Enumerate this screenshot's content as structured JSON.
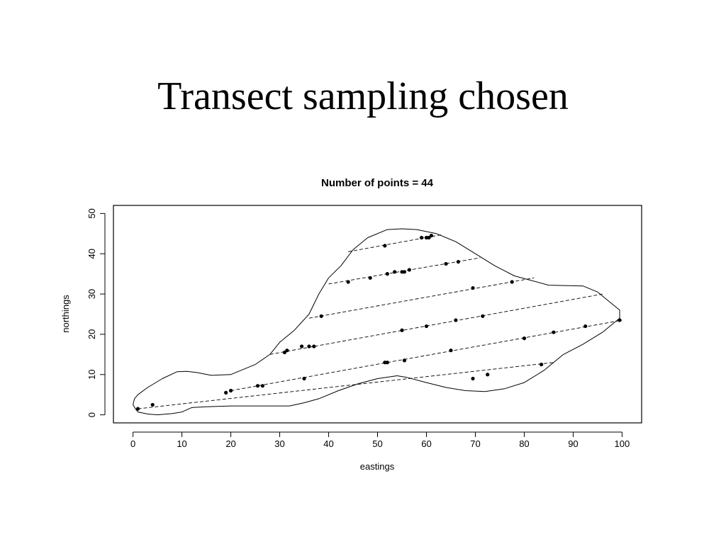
{
  "slide": {
    "title": "Transect sampling chosen"
  },
  "chart_data": {
    "type": "scatter",
    "title": "Number of points =  44",
    "xlabel": "eastings",
    "ylabel": "northings",
    "xlim": [
      -4,
      104
    ],
    "ylim": [
      -2,
      52
    ],
    "xticks": [
      0,
      10,
      20,
      30,
      40,
      50,
      60,
      70,
      80,
      90,
      100
    ],
    "yticks": [
      0,
      10,
      20,
      30,
      40,
      50
    ],
    "grid": false,
    "boundary": [
      [
        0.5,
        1.5
      ],
      [
        1,
        0.7
      ],
      [
        3,
        0.2
      ],
      [
        5,
        0
      ],
      [
        8,
        0.3
      ],
      [
        10,
        0.7
      ],
      [
        12,
        1.8
      ],
      [
        15,
        2
      ],
      [
        20,
        2.2
      ],
      [
        25,
        2.2
      ],
      [
        32,
        2.2
      ],
      [
        35,
        3
      ],
      [
        38,
        4
      ],
      [
        42,
        6
      ],
      [
        46,
        7.7
      ],
      [
        50,
        9
      ],
      [
        54,
        9.7
      ],
      [
        56,
        9.3
      ],
      [
        60,
        8
      ],
      [
        64,
        6.8
      ],
      [
        68,
        6
      ],
      [
        72,
        5.8
      ],
      [
        76,
        6.5
      ],
      [
        80,
        8
      ],
      [
        84,
        11
      ],
      [
        88,
        15
      ],
      [
        92,
        17.5
      ],
      [
        96,
        20.5
      ],
      [
        99.5,
        24
      ],
      [
        99.5,
        26
      ],
      [
        97,
        28.5
      ],
      [
        95,
        30.5
      ],
      [
        92,
        32
      ],
      [
        85,
        32.2
      ],
      [
        78,
        34.5
      ],
      [
        74,
        37
      ],
      [
        70,
        40
      ],
      [
        66,
        43
      ],
      [
        62,
        45
      ],
      [
        58,
        46
      ],
      [
        55,
        46.2
      ],
      [
        52,
        46
      ],
      [
        48,
        44
      ],
      [
        45,
        41
      ],
      [
        42.5,
        37
      ],
      [
        40,
        34
      ],
      [
        38,
        30
      ],
      [
        36,
        25
      ],
      [
        33,
        21
      ],
      [
        30,
        18
      ],
      [
        28,
        15
      ],
      [
        25,
        12.5
      ],
      [
        22,
        11
      ],
      [
        20,
        10
      ],
      [
        16,
        9.8
      ],
      [
        13,
        10.5
      ],
      [
        11,
        10.8
      ],
      [
        9,
        10.7
      ],
      [
        6,
        9
      ],
      [
        3,
        6.8
      ],
      [
        1,
        5
      ],
      [
        0.3,
        4
      ],
      [
        0,
        2.5
      ]
    ],
    "transects": [
      [
        [
          1,
          1.5
        ],
        [
          86,
          13
        ]
      ],
      [
        [
          20,
          6
        ],
        [
          100,
          23.5
        ]
      ],
      [
        [
          28,
          15
        ],
        [
          96,
          30
        ]
      ],
      [
        [
          36,
          24
        ],
        [
          82,
          34
        ]
      ],
      [
        [
          40,
          32.5
        ],
        [
          71,
          39
        ]
      ],
      [
        [
          44,
          40.5
        ],
        [
          63,
          44.7
        ]
      ]
    ],
    "points": [
      [
        1,
        1.5
      ],
      [
        4,
        2.5
      ],
      [
        19,
        5.5
      ],
      [
        20,
        6
      ],
      [
        25.5,
        7.2
      ],
      [
        26.5,
        7.2
      ],
      [
        35,
        9
      ],
      [
        51.5,
        13
      ],
      [
        52,
        13
      ],
      [
        55.5,
        13.5
      ],
      [
        65,
        16
      ],
      [
        69.5,
        9
      ],
      [
        72.5,
        10
      ],
      [
        83.5,
        12.5
      ],
      [
        31,
        15.5
      ],
      [
        31.5,
        16
      ],
      [
        36,
        17
      ],
      [
        37,
        17
      ],
      [
        55,
        21
      ],
      [
        60,
        22
      ],
      [
        66,
        23.5
      ],
      [
        71.5,
        24.5
      ],
      [
        80,
        19
      ],
      [
        86,
        20.5
      ],
      [
        92.5,
        22
      ],
      [
        99.5,
        23.5
      ],
      [
        38.5,
        24.5
      ],
      [
        69.5,
        31.5
      ],
      [
        77.5,
        33
      ],
      [
        44,
        33
      ],
      [
        48.5,
        34
      ],
      [
        52,
        35
      ],
      [
        53.5,
        35.5
      ],
      [
        55,
        35.5
      ],
      [
        55.5,
        35.5
      ],
      [
        56.5,
        36
      ],
      [
        64,
        37.5
      ],
      [
        66.5,
        38
      ],
      [
        51.5,
        42
      ],
      [
        59,
        44
      ],
      [
        60,
        44
      ],
      [
        61,
        44.5
      ],
      [
        60.5,
        44
      ],
      [
        34.5,
        17
      ]
    ]
  }
}
